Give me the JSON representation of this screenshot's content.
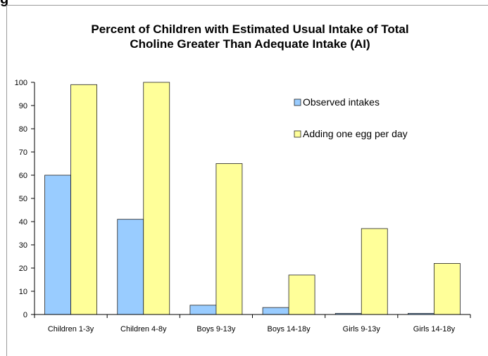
{
  "figure_label": "g",
  "chart_data": {
    "type": "bar",
    "title": "Percent of Children with Estimated Usual Intake of Total Choline Greater Than Adequate Intake (AI)",
    "title_lines": [
      "Percent of Children with Estimated Usual Intake of Total",
      "Choline Greater Than Adequate Intake (AI)"
    ],
    "xlabel": "",
    "ylabel": "",
    "ylim": [
      0,
      100
    ],
    "yticks": [
      0,
      10,
      20,
      30,
      40,
      50,
      60,
      70,
      80,
      90,
      100
    ],
    "categories": [
      "Children 1-3y",
      "Children 4-8y",
      "Boys 9-13y",
      "Boys 14-18y",
      "Girls 9-13y",
      "Girls 14-18y"
    ],
    "series": [
      {
        "name": "Observed intakes",
        "color": "#99ccff",
        "values": [
          60,
          41,
          4,
          3,
          0.5,
          0.5
        ]
      },
      {
        "name": "Adding one egg per day",
        "color": "#ffff99",
        "values": [
          99,
          100,
          65,
          17,
          37,
          22
        ]
      }
    ],
    "grid": false,
    "legend_position": "top-right"
  }
}
